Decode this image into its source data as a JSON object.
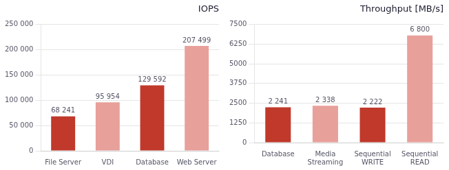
{
  "chart_data": [
    {
      "type": "bar",
      "title": "IOPS",
      "categories": [
        "File Server",
        "VDI",
        "Database",
        "Web Server"
      ],
      "values": [
        68241,
        95954,
        129592,
        207499
      ],
      "value_labels": [
        "68 241",
        "95 954",
        "129 592",
        "207 499"
      ],
      "colors": [
        "#c0392b",
        "#e8a09a",
        "#c0392b",
        "#e8a09a"
      ],
      "ylim": [
        0,
        250000
      ],
      "yticks": [
        0,
        {
          "value": 50000,
          "label": "50 000"
        },
        {
          "value": 100000,
          "label": "100 000"
        },
        {
          "value": 150000,
          "label": "150 000"
        },
        {
          "value": 200000,
          "label": "200 000"
        },
        {
          "value": 250000,
          "label": "250 000"
        }
      ],
      "grid": true,
      "data_labels": true
    },
    {
      "type": "bar",
      "title": "Throughput [MB/s]",
      "categories": [
        "Database",
        "Media\nStreaming",
        "Sequential\nWRITE",
        "Sequential\nREAD"
      ],
      "values": [
        2241,
        2338,
        2222,
        6800
      ],
      "value_labels": [
        "2 241",
        "2 338",
        "2 222",
        "6 800"
      ],
      "colors": [
        "#c0392b",
        "#e8a09a",
        "#c0392b",
        "#e8a09a"
      ],
      "ylim": [
        0,
        7500
      ],
      "yticks": [
        0,
        1250,
        2500,
        3750,
        5000,
        6250,
        7500
      ],
      "grid": true,
      "data_labels": true
    }
  ]
}
